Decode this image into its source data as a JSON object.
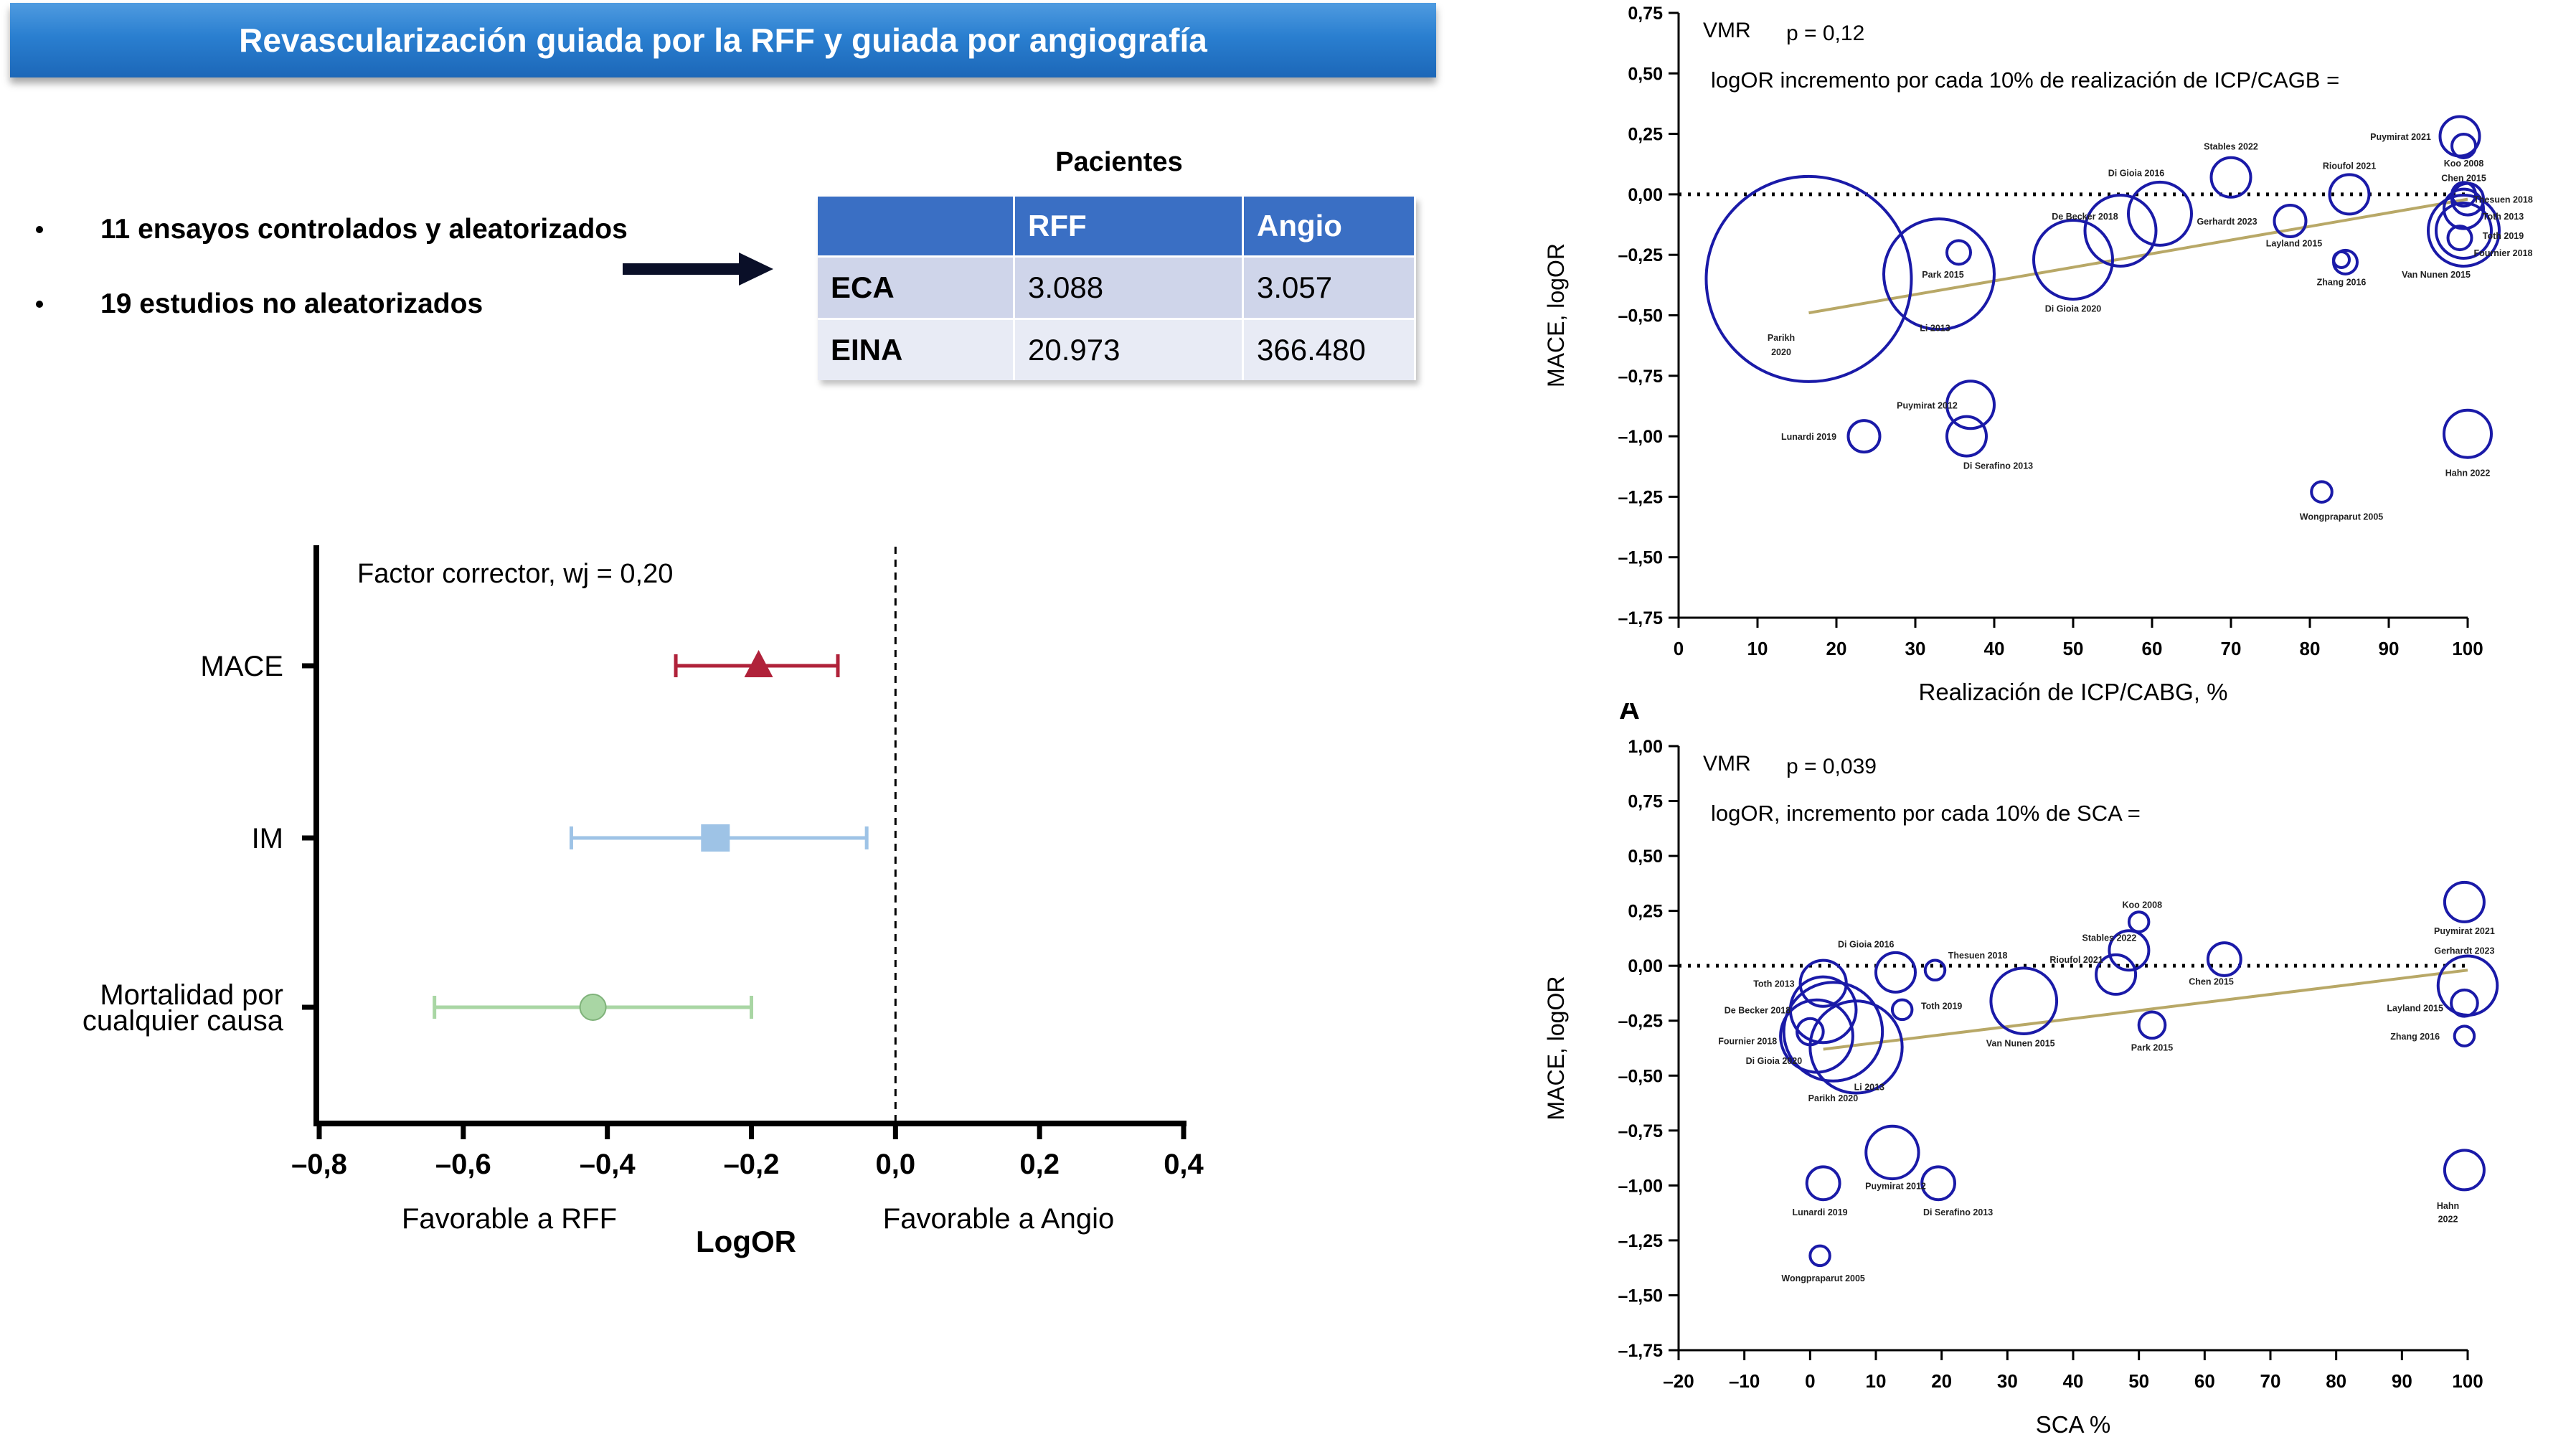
{
  "title": "Revascularización guiada por la RFF y guiada por angiografía",
  "bullets": [
    "11 ensayos controlados y aleatorizados",
    "19 estudios no aleatorizados"
  ],
  "patients_table": {
    "title": "Pacientes",
    "headers": [
      "",
      "RFF",
      "Angio"
    ],
    "rows": [
      {
        "label": "ECA",
        "rff": "3.088",
        "angio": "3.057"
      },
      {
        "label": "EINA",
        "rff": "20.973",
        "angio": "366.480"
      }
    ]
  },
  "colors": {
    "banner": "#2a7fd0",
    "mace": "#b0223a",
    "im": "#9ec3e6",
    "mort": "#a9d6a4",
    "bubble": "#1a1aa8",
    "trend": "#b8a867"
  },
  "chart_data": [
    {
      "type": "forest",
      "annotation": "Factor corrector, wj = 0,20",
      "categories": [
        "MACE",
        "IM",
        "Mortalidad por cualquier causa"
      ],
      "category_lines": [
        [
          "MACE"
        ],
        [
          "IM"
        ],
        [
          "Mortalidad por",
          "cualquier causa"
        ]
      ],
      "estimates": [
        {
          "name": "MACE",
          "value": -0.19,
          "ci": [
            -0.305,
            -0.08
          ],
          "marker": "triangle"
        },
        {
          "name": "IM",
          "value": -0.25,
          "ci": [
            -0.45,
            -0.04
          ],
          "marker": "square"
        },
        {
          "name": "Mortalidad por cualquier causa",
          "value": -0.42,
          "ci": [
            -0.64,
            -0.2
          ],
          "marker": "circle"
        }
      ],
      "xlim": [
        -0.8,
        0.4
      ],
      "xticks": [
        "–0,8",
        "–0,6",
        "–0,4",
        "–0,2",
        "0,0",
        "0,2",
        "0,4"
      ],
      "xlabel": "LogOR",
      "left_label": "Favorable a RFF",
      "right_label": "Favorable a Angio",
      "reference_line": 0
    },
    {
      "type": "scatter",
      "label_top": "VMR",
      "pvalue": "p = 0,12",
      "subtitle": "logOR incremento por cada 10% de realización de ICP/CAGB =",
      "xlabel": "Realización de ICP/CABG, %",
      "ylabel": "MACE, logOR",
      "xlim": [
        0,
        100
      ],
      "ylim": [
        -1.75,
        0.75
      ],
      "xticks": [
        "0",
        "10",
        "20",
        "30",
        "40",
        "50",
        "60",
        "70",
        "80",
        "90",
        "100"
      ],
      "yticks": [
        "0,75",
        "0,50",
        "0,25",
        "0,00",
        "–0,25",
        "–0,50",
        "–0,75",
        "–1,00",
        "–1,25",
        "–1,50",
        "–1,75"
      ],
      "trend": [
        [
          16.5,
          -0.49
        ],
        [
          100,
          -0.02
        ]
      ],
      "points": [
        {
          "label": "Parikh 2020",
          "x": 16.5,
          "y": -0.35,
          "r": 13,
          "lx": 13,
          "ly": -0.59,
          "lx2": 13,
          "ly2": -0.65
        },
        {
          "label": "Park 2015",
          "x": 35.5,
          "y": -0.24,
          "r": 1.5,
          "lx": 33.5,
          "ly": -0.33
        },
        {
          "label": "Li 2013",
          "x": 33,
          "y": -0.33,
          "r": 7,
          "lx": 32.5,
          "ly": -0.55
        },
        {
          "label": "Di Gioia 2020",
          "x": 50,
          "y": -0.27,
          "r": 5,
          "lx": 50,
          "ly": -0.47
        },
        {
          "label": "De Becker 2018",
          "x": 56,
          "y": -0.15,
          "r": 4.5,
          "lx": 51.5,
          "ly": -0.09
        },
        {
          "label": "Di Gioia 2016",
          "x": 61,
          "y": -0.08,
          "r": 4,
          "lx": 58,
          "ly": 0.09
        },
        {
          "label": "Stables 2022",
          "x": 70,
          "y": 0.07,
          "r": 2.5,
          "lx": 70,
          "ly": 0.2
        },
        {
          "label": "Gerhardt 2023",
          "x": 77.5,
          "y": -0.11,
          "r": 2,
          "lx": 69.5,
          "ly": -0.11
        },
        {
          "label": "Layland 2015",
          "x": 84.5,
          "y": -0.28,
          "r": 1.5,
          "lx": 78,
          "ly": -0.2
        },
        {
          "label": "Zhang 2016",
          "x": 84,
          "y": -0.27,
          "r": 1,
          "lx": 84,
          "ly": -0.36
        },
        {
          "label": "Rioufol 2021",
          "x": 85,
          "y": 0.0,
          "r": 2.5,
          "lx": 85,
          "ly": 0.12
        },
        {
          "label": "Puymirat 2021",
          "x": 99,
          "y": 0.24,
          "r": 2.5,
          "lx": 91.5,
          "ly": 0.24
        },
        {
          "label": "Koo 2008",
          "x": 99.5,
          "y": 0.2,
          "r": 1.5,
          "lx": 99.5,
          "ly": 0.13
        },
        {
          "label": "Chen 2015",
          "x": 99.5,
          "y": 0.0,
          "r": 1.5,
          "lx": 99.5,
          "ly": 0.07
        },
        {
          "label": "Thesuen 2018",
          "x": 100,
          "y": -0.02,
          "r": 2,
          "lx": 104.5,
          "ly": -0.02
        },
        {
          "label": "Toth 2013",
          "x": 99.5,
          "y": -0.06,
          "r": 2.5,
          "lx": 104.5,
          "ly": -0.09
        },
        {
          "label": "Toth 2019",
          "x": 99.5,
          "y": -0.15,
          "r": 3.5,
          "lx": 104.5,
          "ly": -0.17
        },
        {
          "label": "Fournier 2018",
          "x": 99,
          "y": -0.18,
          "r": 1.5,
          "lx": 104.5,
          "ly": -0.24
        },
        {
          "label": "Van Nunen 2015",
          "x": 99.5,
          "y": -0.15,
          "r": 4.5,
          "lx": 96,
          "ly": -0.33
        },
        {
          "label": "Puymirat 2012",
          "x": 37,
          "y": -0.87,
          "r": 3,
          "lx": 31.5,
          "ly": -0.87
        },
        {
          "label": "Lunardi 2019",
          "x": 23.5,
          "y": -1.0,
          "r": 2,
          "lx": 16.5,
          "ly": -1.0
        },
        {
          "label": "Di Serafino 2013",
          "x": 36.5,
          "y": -1.0,
          "r": 2.5,
          "lx": 40.5,
          "ly": -1.12
        },
        {
          "label": "Hahn 2022",
          "x": 100,
          "y": -0.99,
          "r": 3,
          "lx": 100,
          "ly": -1.15
        },
        {
          "label": "Wongpraparut 2005",
          "x": 81.5,
          "y": -1.23,
          "r": 1.3,
          "lx": 84,
          "ly": -1.33
        }
      ]
    },
    {
      "type": "scatter",
      "panel_letter": "A",
      "label_top": "VMR",
      "pvalue": "p = 0,039",
      "subtitle": "logOR, incremento por cada 10% de SCA =",
      "xlabel": "SCA %",
      "ylabel": "MACE, logOR",
      "xlim": [
        -20,
        100
      ],
      "ylim": [
        -1.75,
        1.0
      ],
      "xticks": [
        "–20",
        "–10",
        "0",
        "10",
        "20",
        "30",
        "40",
        "50",
        "60",
        "70",
        "80",
        "90",
        "100"
      ],
      "yticks": [
        "1,00",
        "0,75",
        "0,50",
        "0,25",
        "0,00",
        "–0,25",
        "–0,50",
        "–0,75",
        "–1,00",
        "–1,25",
        "–1,50",
        "–1,75"
      ],
      "trend": [
        [
          2,
          -0.38
        ],
        [
          100,
          -0.02
        ]
      ],
      "points": [
        {
          "label": "Koo 2008",
          "x": 50,
          "y": 0.2,
          "r": 1.5,
          "lx": 50.5,
          "ly": 0.28
        },
        {
          "label": "Stables 2022",
          "x": 48.5,
          "y": 0.07,
          "r": 3,
          "lx": 45.5,
          "ly": 0.13
        },
        {
          "label": "Rioufol 2021",
          "x": 46.5,
          "y": -0.04,
          "r": 3,
          "lx": 40.5,
          "ly": 0.03
        },
        {
          "label": "Chen 2015",
          "x": 63,
          "y": 0.03,
          "r": 2.5,
          "lx": 61,
          "ly": -0.07
        },
        {
          "label": "Di Gioia 2016",
          "x": 13,
          "y": -0.03,
          "r": 3,
          "lx": 8.5,
          "ly": 0.1
        },
        {
          "label": "Thesuen 2018",
          "x": 19,
          "y": -0.02,
          "r": 1.5,
          "lx": 25.5,
          "ly": 0.05
        },
        {
          "label": "Toth 2013",
          "x": 2,
          "y": -0.08,
          "r": 3.5,
          "lx": -5.5,
          "ly": -0.08
        },
        {
          "label": "Toth 2019",
          "x": 14,
          "y": -0.2,
          "r": 1.5,
          "lx": 20,
          "ly": -0.18
        },
        {
          "label": "De Becker 2018",
          "x": 2,
          "y": -0.2,
          "r": 5,
          "lx": -8,
          "ly": -0.2
        },
        {
          "label": "Fournier 2018",
          "x": 0,
          "y": -0.3,
          "r": 2,
          "lx": -9.5,
          "ly": -0.34
        },
        {
          "label": "Di Gioia 2020",
          "x": 1,
          "y": -0.32,
          "r": 5.5,
          "lx": -5.5,
          "ly": -0.43
        },
        {
          "label": "Li 2013",
          "x": 7,
          "y": -0.37,
          "r": 7,
          "lx": 9,
          "ly": -0.55
        },
        {
          "label": "Parikh 2020",
          "x": 3.5,
          "y": -0.3,
          "r": 7.5,
          "lx": 3.5,
          "ly": -0.6
        },
        {
          "label": "Van Nunen 2015",
          "x": 32.5,
          "y": -0.16,
          "r": 5,
          "lx": 32,
          "ly": -0.35
        },
        {
          "label": "Park 2015",
          "x": 52,
          "y": -0.27,
          "r": 2,
          "lx": 52,
          "ly": -0.37
        },
        {
          "label": "Puymirat 2021",
          "x": 99.5,
          "y": 0.29,
          "r": 3,
          "lx": 99.5,
          "ly": 0.16
        },
        {
          "label": "Gerhardt 2023",
          "x": 100,
          "y": -0.09,
          "r": 4.5,
          "lx": 99.5,
          "ly": 0.07
        },
        {
          "label": "Layland 2015",
          "x": 99.5,
          "y": -0.17,
          "r": 2,
          "lx": 92,
          "ly": -0.19
        },
        {
          "label": "Zhang 2016",
          "x": 99.5,
          "y": -0.32,
          "r": 1.5,
          "lx": 92,
          "ly": -0.32
        },
        {
          "label": "Puymirat 2012",
          "x": 12.5,
          "y": -0.85,
          "r": 4,
          "lx": 13,
          "ly": -1.0
        },
        {
          "label": "Lunardi 2019",
          "x": 2,
          "y": -0.99,
          "r": 2.5,
          "lx": 1.5,
          "ly": -1.12
        },
        {
          "label": "Di Serafino 2013",
          "x": 19.5,
          "y": -0.99,
          "r": 2.5,
          "lx": 22.5,
          "ly": -1.12
        },
        {
          "label": "Hahn 2022",
          "x": 99.5,
          "y": -0.93,
          "r": 3,
          "lx": 97,
          "ly": -1.09,
          "lx2": 97,
          "ly2": -1.15
        },
        {
          "label": "Wongpraparut 2005",
          "x": 1.5,
          "y": -1.32,
          "r": 1.5,
          "lx": 2,
          "ly": -1.42
        }
      ]
    }
  ]
}
